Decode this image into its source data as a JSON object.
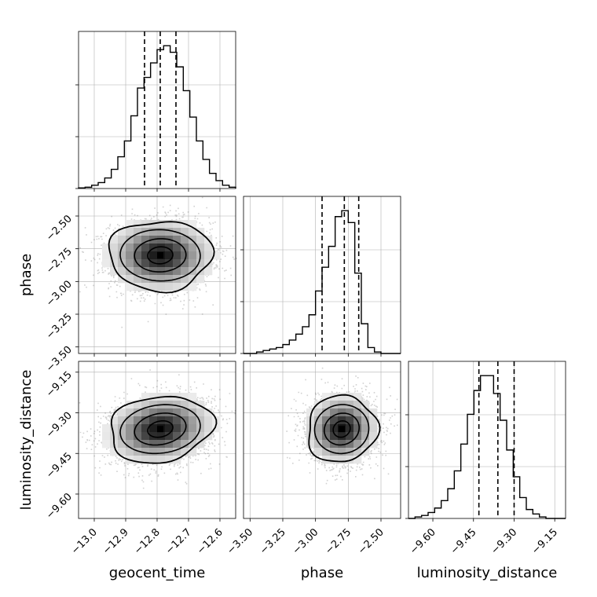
{
  "chart_data": {
    "type": "corner",
    "parameters": [
      "geocent_time",
      "phase",
      "luminosity_distance"
    ],
    "axes": {
      "geocent_time": {
        "label": "geocent_time",
        "range": [
          -13.05,
          -12.55
        ],
        "ticks": [
          -13.0,
          -12.9,
          -12.8,
          -12.7,
          -12.6
        ],
        "tick_labels": [
          "−13.0",
          "−12.9",
          "−12.8",
          "−12.7",
          "−12.6"
        ],
        "quantiles": [
          -12.84,
          -12.79,
          -12.74
        ],
        "mean": -12.79,
        "sd": 0.08,
        "hist_counts": [
          1,
          2,
          5,
          9,
          16,
          29,
          48,
          72,
          110,
          152,
          168,
          190,
          210,
          216,
          206,
          184,
          148,
          108,
          72,
          44,
          23,
          12,
          5,
          2
        ]
      },
      "phase": {
        "label": "phase",
        "range": [
          -3.55,
          -2.35
        ],
        "ticks": [
          -3.5,
          -3.25,
          -3.0,
          -2.75,
          -2.5
        ],
        "tick_labels": [
          "−3.50",
          "−3.25",
          "−3.00",
          "−2.75",
          "−2.50"
        ],
        "quantiles": [
          -2.95,
          -2.78,
          -2.67
        ],
        "mean": -2.8,
        "sd": 0.13,
        "hist_counts": [
          0,
          0,
          1,
          2,
          3,
          4,
          6,
          9,
          13,
          18,
          26,
          42,
          58,
          72,
          92,
          96,
          88,
          54,
          20,
          4,
          1,
          0,
          0,
          0
        ]
      },
      "luminosity_distance": {
        "label": "luminosity_distance",
        "range": [
          -9.69,
          -9.11
        ],
        "ticks": [
          -9.6,
          -9.45,
          -9.3,
          -9.15
        ],
        "tick_labels": [
          "−9.60",
          "−9.45",
          "−9.30",
          "−9.15"
        ],
        "quantiles": [
          -9.43,
          -9.36,
          -9.3
        ],
        "mean": -9.36,
        "sd": 0.06,
        "hist_counts": [
          0,
          1,
          2,
          4,
          7,
          12,
          20,
          32,
          50,
          70,
          86,
          96,
          96,
          84,
          66,
          46,
          28,
          14,
          6,
          3,
          1,
          0,
          0,
          0
        ]
      }
    },
    "pairs": [
      {
        "x": "geocent_time",
        "y": "phase",
        "correlation": 0.0
      },
      {
        "x": "geocent_time",
        "y": "luminosity_distance",
        "correlation": 0.15
      },
      {
        "x": "phase",
        "y": "luminosity_distance",
        "correlation": 0.05
      }
    ],
    "grid": true,
    "colors": {
      "line": "#000000",
      "grid": "#b0b0b0",
      "scatter": "#5a5a5a"
    }
  }
}
